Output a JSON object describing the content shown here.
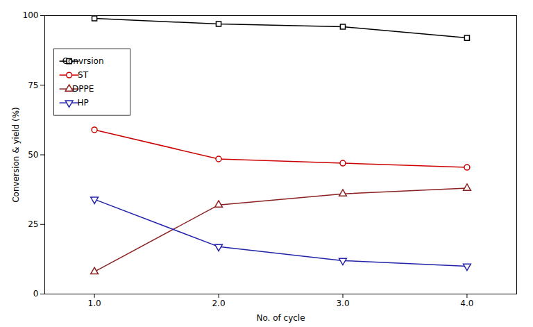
{
  "chart_data": {
    "type": "line",
    "x": [
      1,
      2,
      3,
      4
    ],
    "xlabel": "No. of cycle",
    "ylabel": "Conversion & yield (%)",
    "xlim": [
      0.6,
      4.4
    ],
    "xticks": [
      1,
      2,
      3,
      4
    ],
    "ylim": [
      0,
      100
    ],
    "yticks": [
      0,
      25,
      50,
      75,
      100
    ],
    "grid": false,
    "legend": "upper left",
    "series": [
      {
        "name": "Convrsion",
        "color": "#000000",
        "marker": "square",
        "values": [
          99,
          97,
          96,
          92
        ]
      },
      {
        "name": "ST",
        "color": "#cc0000",
        "marker": "circle",
        "values": [
          59,
          48.5,
          47,
          45.5
        ]
      },
      {
        "name": "DPPE",
        "color": "#8b2020",
        "marker": "triangle-up",
        "values": [
          8,
          32,
          36,
          38
        ]
      },
      {
        "name": "HP",
        "color": "#2222aa",
        "marker": "triangle-down",
        "values": [
          34,
          17,
          12,
          10
        ]
      }
    ]
  }
}
